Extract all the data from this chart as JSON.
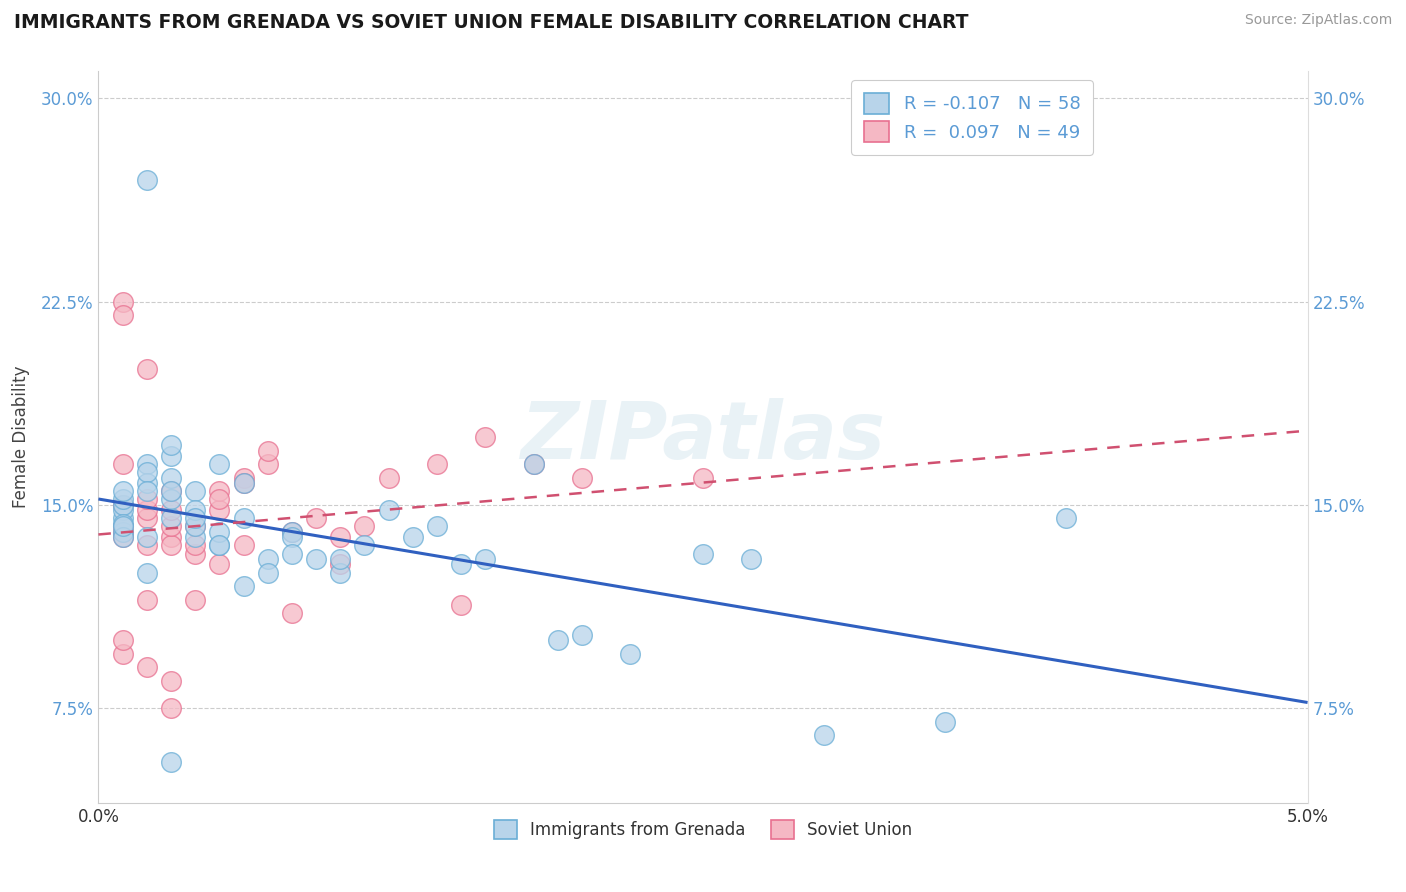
{
  "title": "IMMIGRANTS FROM GRENADA VS SOVIET UNION FEMALE DISABILITY CORRELATION CHART",
  "source": "Source: ZipAtlas.com",
  "ylabel": "Female Disability",
  "xmin": 0.0,
  "xmax": 0.05,
  "ymin": 0.04,
  "ymax": 0.31,
  "yticks": [
    0.075,
    0.15,
    0.225,
    0.3
  ],
  "ytick_labels": [
    "7.5%",
    "15.0%",
    "22.5%",
    "30.0%"
  ],
  "xticks": [
    0.0,
    0.05
  ],
  "xtick_labels": [
    "0.0%",
    "5.0%"
  ],
  "legend1_label": "R = -0.107   N = 58",
  "legend2_label": "R =  0.097   N = 49",
  "series1_label": "Immigrants from Grenada",
  "series2_label": "Soviet Union",
  "series1_face_color": "#b8d4ea",
  "series2_face_color": "#f5b8c4",
  "series1_edge_color": "#6aaed6",
  "series2_edge_color": "#e87090",
  "trendline1_color": "#3060c0",
  "trendline2_color": "#d05070",
  "watermark": "ZIPatlas",
  "grenada_x": [
    0.001,
    0.001,
    0.001,
    0.001,
    0.001,
    0.001,
    0.001,
    0.002,
    0.002,
    0.002,
    0.002,
    0.002,
    0.003,
    0.003,
    0.003,
    0.003,
    0.003,
    0.003,
    0.004,
    0.004,
    0.004,
    0.004,
    0.005,
    0.005,
    0.005,
    0.006,
    0.006,
    0.007,
    0.007,
    0.008,
    0.008,
    0.009,
    0.01,
    0.01,
    0.011,
    0.012,
    0.013,
    0.014,
    0.015,
    0.016,
    0.018,
    0.019,
    0.02,
    0.022,
    0.025,
    0.027,
    0.03,
    0.035,
    0.04,
    0.001,
    0.001,
    0.002,
    0.002,
    0.003,
    0.004,
    0.005,
    0.006,
    0.008
  ],
  "grenada_y": [
    0.145,
    0.148,
    0.15,
    0.152,
    0.155,
    0.14,
    0.143,
    0.27,
    0.165,
    0.158,
    0.162,
    0.155,
    0.168,
    0.16,
    0.145,
    0.172,
    0.152,
    0.155,
    0.138,
    0.142,
    0.155,
    0.148,
    0.135,
    0.14,
    0.165,
    0.145,
    0.158,
    0.13,
    0.125,
    0.14,
    0.138,
    0.13,
    0.125,
    0.13,
    0.135,
    0.148,
    0.138,
    0.142,
    0.128,
    0.13,
    0.165,
    0.1,
    0.102,
    0.095,
    0.132,
    0.13,
    0.065,
    0.07,
    0.145,
    0.138,
    0.142,
    0.125,
    0.138,
    0.055,
    0.145,
    0.135,
    0.12,
    0.132
  ],
  "soviet_x": [
    0.001,
    0.001,
    0.001,
    0.001,
    0.001,
    0.001,
    0.001,
    0.002,
    0.002,
    0.002,
    0.002,
    0.002,
    0.003,
    0.003,
    0.003,
    0.003,
    0.003,
    0.004,
    0.004,
    0.004,
    0.005,
    0.005,
    0.005,
    0.006,
    0.006,
    0.007,
    0.007,
    0.008,
    0.009,
    0.01,
    0.011,
    0.012,
    0.014,
    0.016,
    0.018,
    0.02,
    0.025,
    0.001,
    0.001,
    0.002,
    0.002,
    0.003,
    0.003,
    0.004,
    0.005,
    0.006,
    0.008,
    0.01,
    0.015
  ],
  "soviet_y": [
    0.14,
    0.138,
    0.165,
    0.142,
    0.225,
    0.22,
    0.15,
    0.145,
    0.135,
    0.2,
    0.148,
    0.152,
    0.138,
    0.135,
    0.142,
    0.148,
    0.155,
    0.132,
    0.135,
    0.142,
    0.148,
    0.155,
    0.152,
    0.16,
    0.158,
    0.165,
    0.17,
    0.14,
    0.145,
    0.138,
    0.142,
    0.16,
    0.165,
    0.175,
    0.165,
    0.16,
    0.16,
    0.095,
    0.1,
    0.09,
    0.115,
    0.085,
    0.075,
    0.115,
    0.128,
    0.135,
    0.11,
    0.128,
    0.113
  ]
}
